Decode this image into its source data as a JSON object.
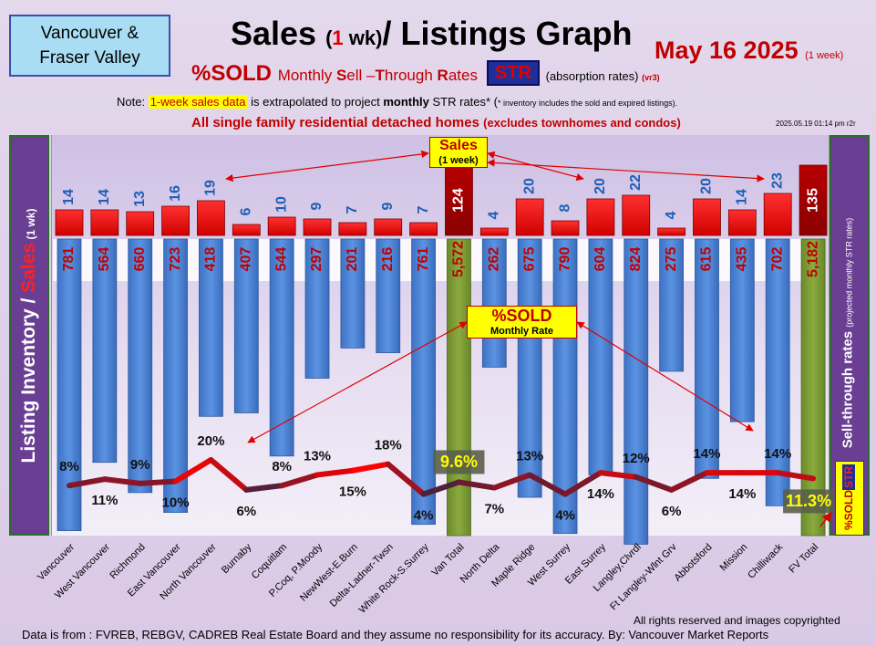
{
  "header": {
    "region_line1": "Vancouver &",
    "region_line2": "Fraser Valley",
    "title_main": "Sales ",
    "title_paren_open": "(",
    "title_one": "1",
    "title_wk": " wk)",
    "title_rest": "/ Listings Graph",
    "date": "May 16 2025",
    "date_sub": "(1 week)",
    "subtitle_sold": "%SOLD",
    "subtitle_rest_pre": "Monthly ",
    "subtitle_S": "S",
    "subtitle_ell": "ell –",
    "subtitle_T": "T",
    "subtitle_hrough": "hrough ",
    "subtitle_R": "R",
    "subtitle_ates": "ates",
    "str_tag": "STR",
    "absorption": "(absorption rates)",
    "absorption_ver": "(vr3)",
    "note_pre": "Note: ",
    "note_highlight": "1-week sales data",
    "note_mid": " is extrapolated to project ",
    "note_bold": "monthly",
    "note_post": " STR rates* (",
    "note_tiny": "* inventory includes the sold and expired listings).",
    "all_sfd": "All single family residential detached homes ",
    "all_sfd_small": "(excludes townhomes and condos)",
    "timestamp": "2025.05.19 01:14 pm r2r"
  },
  "side_left": {
    "listing": "Listing Inventory / ",
    "sales": "Sales",
    "wk": " (1 wk)"
  },
  "side_right": {
    "label": "Sell-through rates ",
    "proj": "(projected monthly STR rates)",
    "tag_sold": "%SOLD",
    "tag_str": "STR"
  },
  "callouts": {
    "sales_title": "Sales",
    "sales_sub": "(1 week)",
    "sold_title": "%SOLD",
    "sold_sub": "Monthly Rate"
  },
  "footer": {
    "rights": "All rights reserved and  images copyrighted",
    "source": "Data is from : FVREB, REBGV, CADREB Real Estate Board and they assume no responsibility for its accuracy. By: Vancouver Market Reports"
  },
  "colors": {
    "inventory_bar": "#4f86d8",
    "total_bar": "#7a9a33",
    "sales_bar": "#e00000",
    "total_sales_bar": "#a00000",
    "str_line_high": "#ff0000",
    "str_line_low": "#1a2a4a",
    "label_red": "#c00000",
    "label_blue": "#1f5fb5"
  },
  "chart_data": {
    "type": "bar",
    "categories": [
      "Vancouver",
      "West Vancouver",
      "Richmond",
      "East Vancouver",
      "North Vancouver",
      "Burnaby",
      "Coquitlam",
      "P.Coq, P.Moody",
      "NewWest-E.Burn",
      "Delta-Ladner-Twsn",
      "White Rock-S.Surrey",
      "Van Total",
      "North Delta",
      "Maple Ridge",
      "West Surrey",
      "East Surrey",
      "Langley,Clvrdl",
      "Ft Langley-Wlnt Grv",
      "Abbotsford",
      "Mission",
      "Chilliwack",
      "FV Total"
    ],
    "series": [
      {
        "name": "Listing Inventory",
        "labels": [
          "781",
          "564",
          "660",
          "723",
          "418",
          "407",
          "544",
          "297",
          "201",
          "216",
          "761",
          "5,572",
          "262",
          "675",
          "790",
          "604",
          "824",
          "275",
          "615",
          "435",
          "702",
          "5,182"
        ],
        "values": [
          781,
          564,
          660,
          723,
          418,
          407,
          544,
          297,
          201,
          216,
          761,
          5572,
          262,
          675,
          790,
          604,
          824,
          275,
          615,
          435,
          702,
          5182
        ]
      },
      {
        "name": "Sales",
        "values": [
          14,
          14,
          13,
          16,
          19,
          6,
          10,
          9,
          7,
          9,
          7,
          124,
          4,
          20,
          8,
          20,
          22,
          4,
          20,
          14,
          23,
          135
        ]
      },
      {
        "name": "%SOLD",
        "labels": [
          "8%",
          "11%",
          "9%",
          "10%",
          "20%",
          "6%",
          "8%",
          "13%",
          "15%",
          "18%",
          "4%",
          "9.6%",
          "7%",
          "13%",
          "4%",
          "14%",
          "12%",
          "6%",
          "14%",
          "14%",
          "14%",
          "11.3%"
        ],
        "values": [
          8,
          11,
          9,
          10,
          20,
          6,
          8,
          13,
          15,
          18,
          4,
          9.6,
          7,
          13,
          4,
          14,
          12,
          6,
          14,
          14,
          14,
          11.3
        ]
      }
    ],
    "str_label_side": [
      "top",
      "bottom",
      "top",
      "bottom",
      "top",
      "bottom",
      "top",
      "top",
      "bottom",
      "top",
      "bottom",
      "top",
      "bottom",
      "top",
      "bottom",
      "bottom",
      "top",
      "bottom",
      "top",
      "bottom",
      "top",
      "total"
    ],
    "total_indices": [
      11,
      21
    ]
  }
}
